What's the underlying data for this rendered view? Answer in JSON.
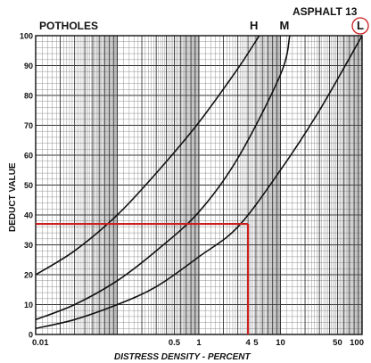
{
  "chart_data": {
    "type": "line",
    "title": "POTHOLES",
    "subtitle": "ASPHALT 13",
    "xlabel": "DISTRESS DENSITY - PERCENT",
    "ylabel": "DEDUCT VALUE",
    "xscale": "log",
    "xlim": [
      0.01,
      100
    ],
    "ylim": [
      0,
      100
    ],
    "xticks": [
      {
        "v": 0.01,
        "label": "0.01"
      },
      {
        "v": 0.5,
        "label": "0.5"
      },
      {
        "v": 1,
        "label": "1"
      },
      {
        "v": 4,
        "label": "4"
      },
      {
        "v": 5,
        "label": "5"
      },
      {
        "v": 10,
        "label": "10"
      },
      {
        "v": 50,
        "label": "50"
      },
      {
        "v": 100,
        "label": "100"
      }
    ],
    "yticks": [
      0,
      10,
      20,
      30,
      40,
      50,
      60,
      70,
      80,
      90,
      100
    ],
    "grid": true,
    "series": [
      {
        "name": "H",
        "x": [
          0.01,
          0.03,
          0.1,
          0.3,
          1,
          3,
          5.5
        ],
        "y": [
          20,
          28,
          40,
          54,
          71,
          89,
          100
        ]
      },
      {
        "name": "M",
        "x": [
          0.01,
          0.03,
          0.1,
          0.3,
          1,
          3,
          10,
          13
        ],
        "y": [
          5,
          10,
          18,
          28,
          41,
          59,
          87,
          100
        ]
      },
      {
        "name": "L",
        "x": [
          0.01,
          0.03,
          0.1,
          0.3,
          1,
          3,
          10,
          30,
          100
        ],
        "y": [
          2,
          5,
          10,
          16,
          26,
          36,
          55,
          75,
          100
        ]
      }
    ],
    "annotation": {
      "x": 4,
      "y": 37,
      "color": "#cc1f1f",
      "circled_series": "L"
    }
  }
}
